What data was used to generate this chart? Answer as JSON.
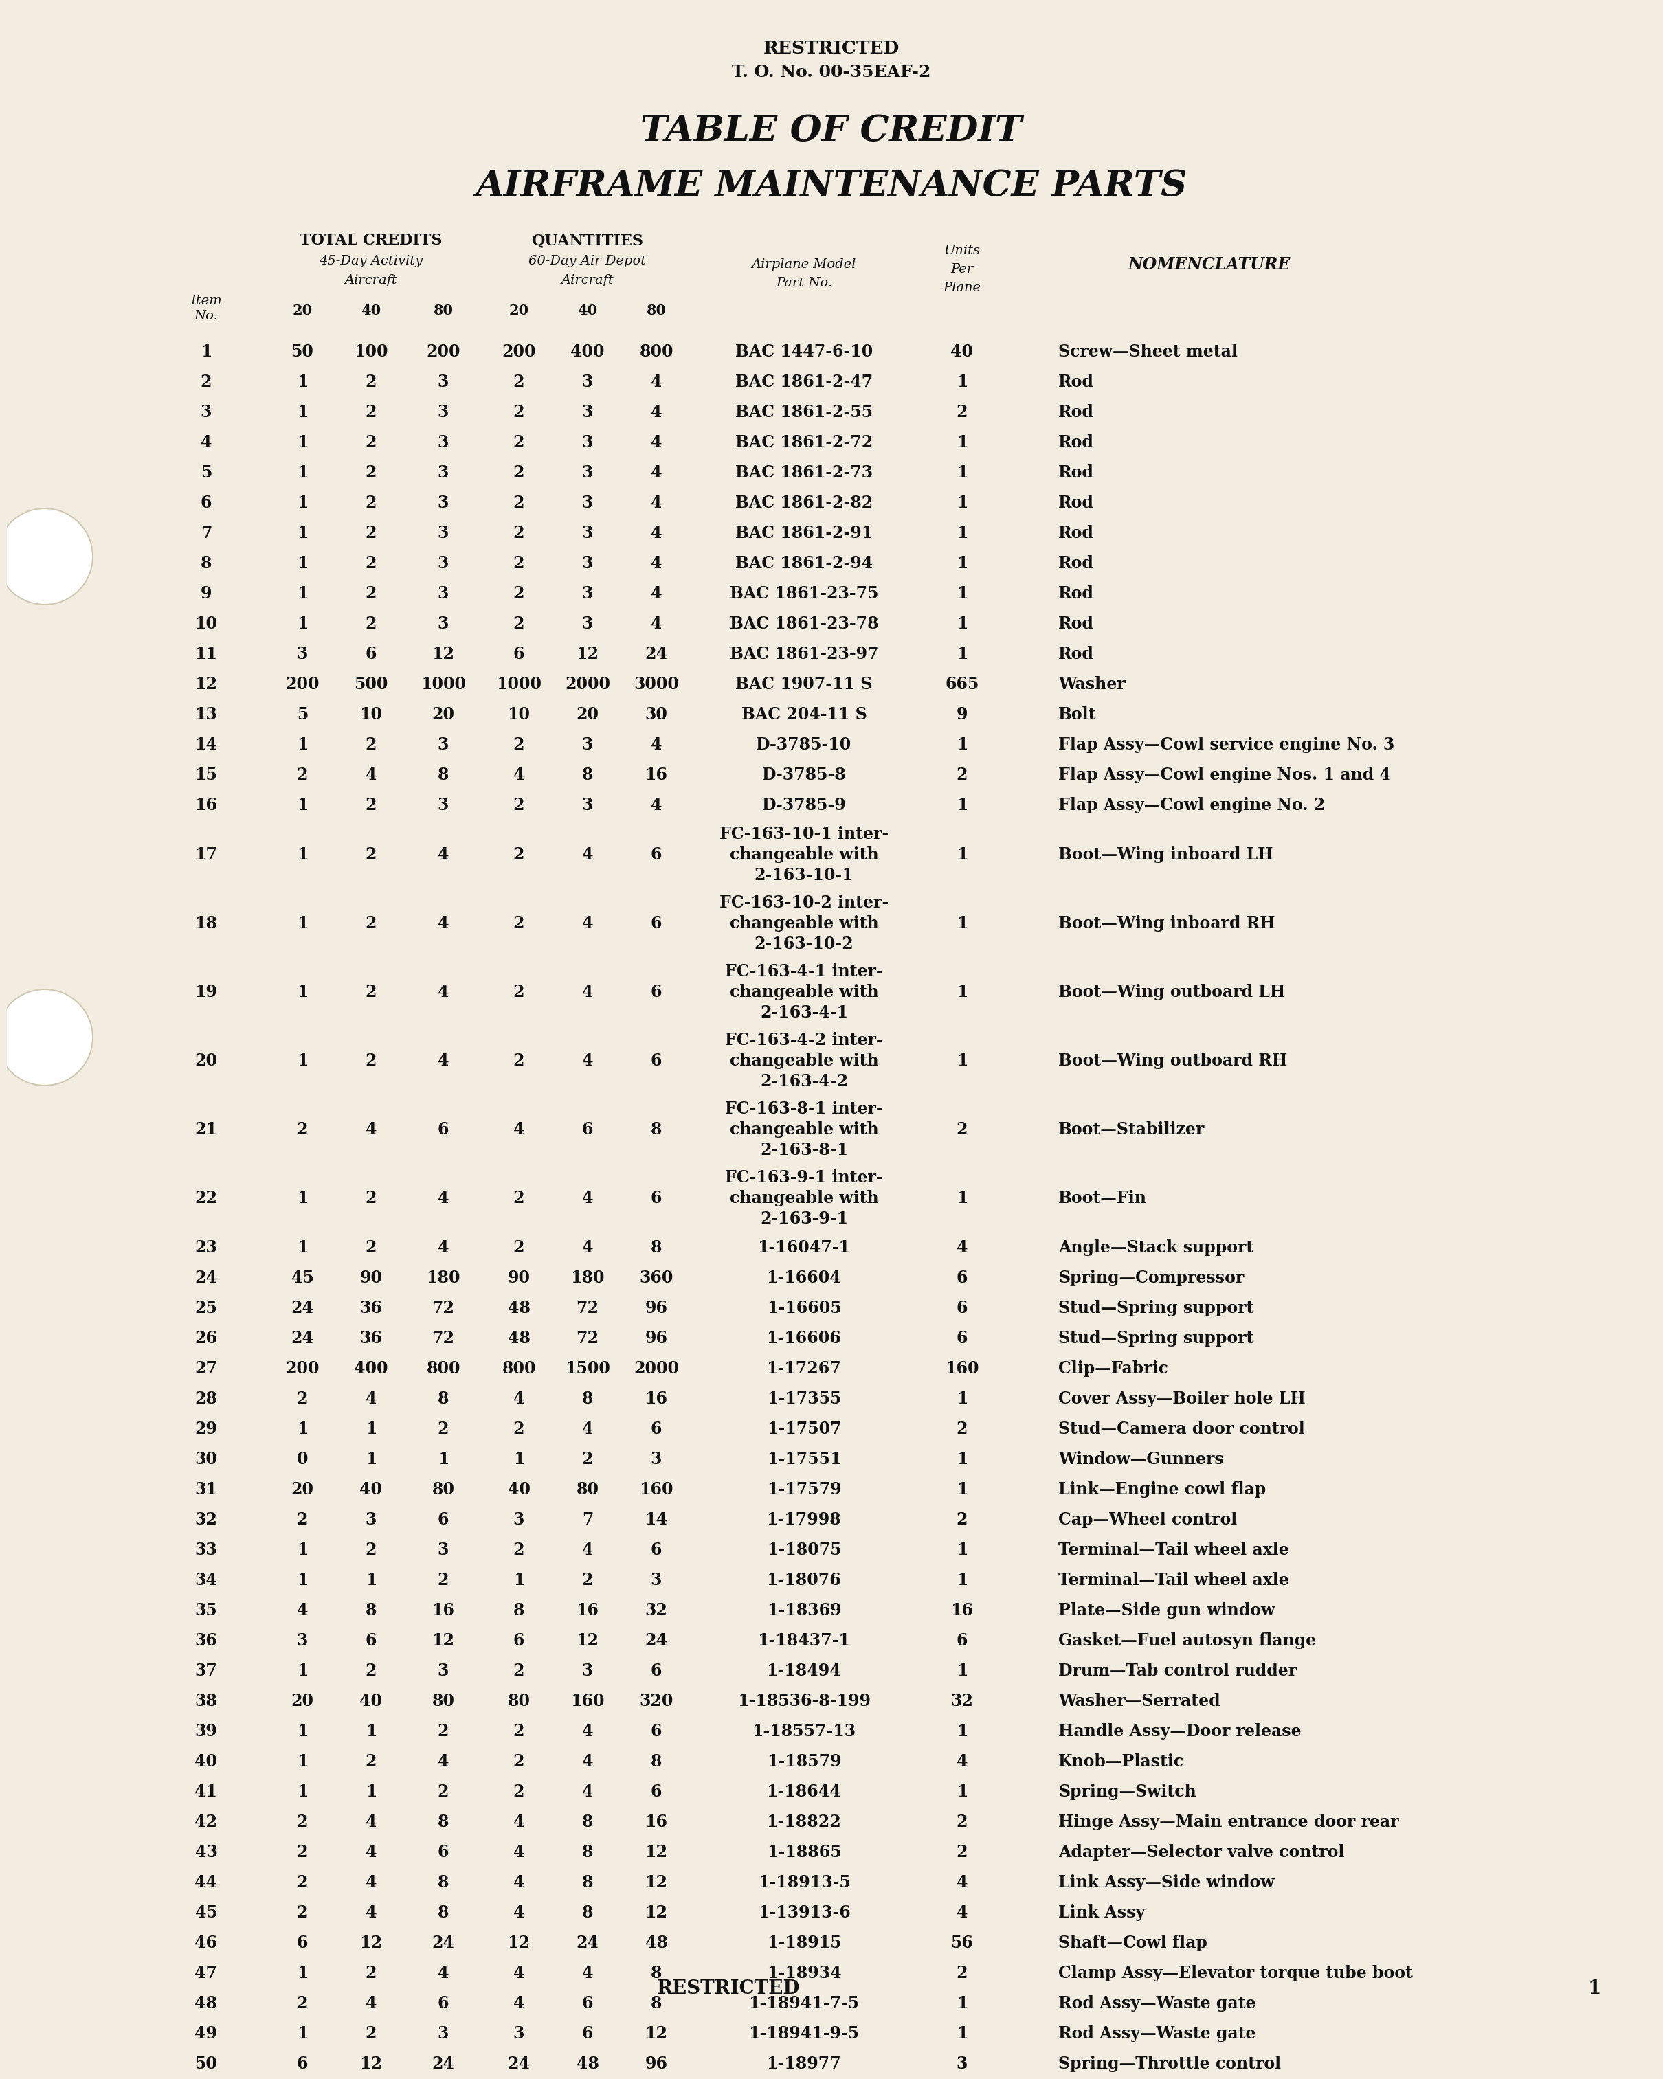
{
  "bg_color": "#f2ede0",
  "text_color": "#111111",
  "title1": "TABLE OF CREDIT",
  "title2": "AIRFRAME MAINTENANCE PARTS",
  "header_restricted_top": "RESTRICTED",
  "header_to_no": "T. O. No. 00-35EAF-2",
  "footer_restricted": "RESTRICTED",
  "footer_page": "1",
  "rows": [
    {
      "item": "1",
      "c20": "50",
      "c40": "100",
      "c80": "200",
      "q20": "200",
      "q40": "400",
      "q80": "800",
      "part": "BAC 1447-6-10",
      "units": "40",
      "nom": "Screw—Sheet metal"
    },
    {
      "item": "2",
      "c20": "1",
      "c40": "2",
      "c80": "3",
      "q20": "2",
      "q40": "3",
      "q80": "4",
      "part": "BAC 1861-2-47",
      "units": "1",
      "nom": "Rod"
    },
    {
      "item": "3",
      "c20": "1",
      "c40": "2",
      "c80": "3",
      "q20": "2",
      "q40": "3",
      "q80": "4",
      "part": "BAC 1861-2-55",
      "units": "2",
      "nom": "Rod"
    },
    {
      "item": "4",
      "c20": "1",
      "c40": "2",
      "c80": "3",
      "q20": "2",
      "q40": "3",
      "q80": "4",
      "part": "BAC 1861-2-72",
      "units": "1",
      "nom": "Rod"
    },
    {
      "item": "5",
      "c20": "1",
      "c40": "2",
      "c80": "3",
      "q20": "2",
      "q40": "3",
      "q80": "4",
      "part": "BAC 1861-2-73",
      "units": "1",
      "nom": "Rod"
    },
    {
      "item": "6",
      "c20": "1",
      "c40": "2",
      "c80": "3",
      "q20": "2",
      "q40": "3",
      "q80": "4",
      "part": "BAC 1861-2-82",
      "units": "1",
      "nom": "Rod"
    },
    {
      "item": "7",
      "c20": "1",
      "c40": "2",
      "c80": "3",
      "q20": "2",
      "q40": "3",
      "q80": "4",
      "part": "BAC 1861-2-91",
      "units": "1",
      "nom": "Rod"
    },
    {
      "item": "8",
      "c20": "1",
      "c40": "2",
      "c80": "3",
      "q20": "2",
      "q40": "3",
      "q80": "4",
      "part": "BAC 1861-2-94",
      "units": "1",
      "nom": "Rod"
    },
    {
      "item": "9",
      "c20": "1",
      "c40": "2",
      "c80": "3",
      "q20": "2",
      "q40": "3",
      "q80": "4",
      "part": "BAC 1861-23-75",
      "units": "1",
      "nom": "Rod"
    },
    {
      "item": "10",
      "c20": "1",
      "c40": "2",
      "c80": "3",
      "q20": "2",
      "q40": "3",
      "q80": "4",
      "part": "BAC 1861-23-78",
      "units": "1",
      "nom": "Rod"
    },
    {
      "item": "11",
      "c20": "3",
      "c40": "6",
      "c80": "12",
      "q20": "6",
      "q40": "12",
      "q80": "24",
      "part": "BAC 1861-23-97",
      "units": "1",
      "nom": "Rod"
    },
    {
      "item": "12",
      "c20": "200",
      "c40": "500",
      "c80": "1000",
      "q20": "1000",
      "q40": "2000",
      "q80": "3000",
      "part": "BAC 1907-11 S",
      "units": "665",
      "nom": "Washer"
    },
    {
      "item": "13",
      "c20": "5",
      "c40": "10",
      "c80": "20",
      "q20": "10",
      "q40": "20",
      "q80": "30",
      "part": "BAC 204-11 S",
      "units": "9",
      "nom": "Bolt"
    },
    {
      "item": "14",
      "c20": "1",
      "c40": "2",
      "c80": "3",
      "q20": "2",
      "q40": "3",
      "q80": "4",
      "part": "D-3785-10",
      "units": "1",
      "nom": "Flap Assy—Cowl service engine No. 3"
    },
    {
      "item": "15",
      "c20": "2",
      "c40": "4",
      "c80": "8",
      "q20": "4",
      "q40": "8",
      "q80": "16",
      "part": "D-3785-8",
      "units": "2",
      "nom": "Flap Assy—Cowl engine Nos. 1 and 4"
    },
    {
      "item": "16",
      "c20": "1",
      "c40": "2",
      "c80": "3",
      "q20": "2",
      "q40": "3",
      "q80": "4",
      "part": "D-3785-9",
      "units": "1",
      "nom": "Flap Assy—Cowl engine No. 2"
    },
    {
      "item": "17",
      "c20": "1",
      "c40": "2",
      "c80": "4",
      "q20": "2",
      "q40": "4",
      "q80": "6",
      "part": "FC-163-10-1 inter-\nchangeable with\n2-163-10-1",
      "units": "1",
      "nom": "Boot—Wing inboard LH"
    },
    {
      "item": "18",
      "c20": "1",
      "c40": "2",
      "c80": "4",
      "q20": "2",
      "q40": "4",
      "q80": "6",
      "part": "FC-163-10-2 inter-\nchangeable with\n2-163-10-2",
      "units": "1",
      "nom": "Boot—Wing inboard RH"
    },
    {
      "item": "19",
      "c20": "1",
      "c40": "2",
      "c80": "4",
      "q20": "2",
      "q40": "4",
      "q80": "6",
      "part": "FC-163-4-1 inter-\nchangeable with\n2-163-4-1",
      "units": "1",
      "nom": "Boot—Wing outboard LH"
    },
    {
      "item": "20",
      "c20": "1",
      "c40": "2",
      "c80": "4",
      "q20": "2",
      "q40": "4",
      "q80": "6",
      "part": "FC-163-4-2 inter-\nchangeable with\n2-163-4-2",
      "units": "1",
      "nom": "Boot—Wing outboard RH"
    },
    {
      "item": "21",
      "c20": "2",
      "c40": "4",
      "c80": "6",
      "q20": "4",
      "q40": "6",
      "q80": "8",
      "part": "FC-163-8-1 inter-\nchangeable with\n2-163-8-1",
      "units": "2",
      "nom": "Boot—Stabilizer"
    },
    {
      "item": "22",
      "c20": "1",
      "c40": "2",
      "c80": "4",
      "q20": "2",
      "q40": "4",
      "q80": "6",
      "part": "FC-163-9-1 inter-\nchangeable with\n2-163-9-1",
      "units": "1",
      "nom": "Boot—Fin"
    },
    {
      "item": "23",
      "c20": "1",
      "c40": "2",
      "c80": "4",
      "q20": "2",
      "q40": "4",
      "q80": "8",
      "part": "1-16047-1",
      "units": "4",
      "nom": "Angle—Stack support"
    },
    {
      "item": "24",
      "c20": "45",
      "c40": "90",
      "c80": "180",
      "q20": "90",
      "q40": "180",
      "q80": "360",
      "part": "1-16604",
      "units": "6",
      "nom": "Spring—Compressor"
    },
    {
      "item": "25",
      "c20": "24",
      "c40": "36",
      "c80": "72",
      "q20": "48",
      "q40": "72",
      "q80": "96",
      "part": "1-16605",
      "units": "6",
      "nom": "Stud—Spring support"
    },
    {
      "item": "26",
      "c20": "24",
      "c40": "36",
      "c80": "72",
      "q20": "48",
      "q40": "72",
      "q80": "96",
      "part": "1-16606",
      "units": "6",
      "nom": "Stud—Spring support"
    },
    {
      "item": "27",
      "c20": "200",
      "c40": "400",
      "c80": "800",
      "q20": "800",
      "q40": "1500",
      "q80": "2000",
      "part": "1-17267",
      "units": "160",
      "nom": "Clip—Fabric"
    },
    {
      "item": "28",
      "c20": "2",
      "c40": "4",
      "c80": "8",
      "q20": "4",
      "q40": "8",
      "q80": "16",
      "part": "1-17355",
      "units": "1",
      "nom": "Cover Assy—Boiler hole LH"
    },
    {
      "item": "29",
      "c20": "1",
      "c40": "1",
      "c80": "2",
      "q20": "2",
      "q40": "4",
      "q80": "6",
      "part": "1-17507",
      "units": "2",
      "nom": "Stud—Camera door control"
    },
    {
      "item": "30",
      "c20": "0",
      "c40": "1",
      "c80": "1",
      "q20": "1",
      "q40": "2",
      "q80": "3",
      "part": "1-17551",
      "units": "1",
      "nom": "Window—Gunners"
    },
    {
      "item": "31",
      "c20": "20",
      "c40": "40",
      "c80": "80",
      "q20": "40",
      "q40": "80",
      "q80": "160",
      "part": "1-17579",
      "units": "1",
      "nom": "Link—Engine cowl flap"
    },
    {
      "item": "32",
      "c20": "2",
      "c40": "3",
      "c80": "6",
      "q20": "3",
      "q40": "7",
      "q80": "14",
      "part": "1-17998",
      "units": "2",
      "nom": "Cap—Wheel control"
    },
    {
      "item": "33",
      "c20": "1",
      "c40": "2",
      "c80": "3",
      "q20": "2",
      "q40": "4",
      "q80": "6",
      "part": "1-18075",
      "units": "1",
      "nom": "Terminal—Tail wheel axle"
    },
    {
      "item": "34",
      "c20": "1",
      "c40": "1",
      "c80": "2",
      "q20": "1",
      "q40": "2",
      "q80": "3",
      "part": "1-18076",
      "units": "1",
      "nom": "Terminal—Tail wheel axle"
    },
    {
      "item": "35",
      "c20": "4",
      "c40": "8",
      "c80": "16",
      "q20": "8",
      "q40": "16",
      "q80": "32",
      "part": "1-18369",
      "units": "16",
      "nom": "Plate—Side gun window"
    },
    {
      "item": "36",
      "c20": "3",
      "c40": "6",
      "c80": "12",
      "q20": "6",
      "q40": "12",
      "q80": "24",
      "part": "1-18437-1",
      "units": "6",
      "nom": "Gasket—Fuel autosyn flange"
    },
    {
      "item": "37",
      "c20": "1",
      "c40": "2",
      "c80": "3",
      "q20": "2",
      "q40": "3",
      "q80": "6",
      "part": "1-18494",
      "units": "1",
      "nom": "Drum—Tab control rudder"
    },
    {
      "item": "38",
      "c20": "20",
      "c40": "40",
      "c80": "80",
      "q20": "80",
      "q40": "160",
      "q80": "320",
      "part": "1-18536-8-199",
      "units": "32",
      "nom": "Washer—Serrated"
    },
    {
      "item": "39",
      "c20": "1",
      "c40": "1",
      "c80": "2",
      "q20": "2",
      "q40": "4",
      "q80": "6",
      "part": "1-18557-13",
      "units": "1",
      "nom": "Handle Assy—Door release"
    },
    {
      "item": "40",
      "c20": "1",
      "c40": "2",
      "c80": "4",
      "q20": "2",
      "q40": "4",
      "q80": "8",
      "part": "1-18579",
      "units": "4",
      "nom": "Knob—Plastic"
    },
    {
      "item": "41",
      "c20": "1",
      "c40": "1",
      "c80": "2",
      "q20": "2",
      "q40": "4",
      "q80": "6",
      "part": "1-18644",
      "units": "1",
      "nom": "Spring—Switch"
    },
    {
      "item": "42",
      "c20": "2",
      "c40": "4",
      "c80": "8",
      "q20": "4",
      "q40": "8",
      "q80": "16",
      "part": "1-18822",
      "units": "2",
      "nom": "Hinge Assy—Main entrance door rear"
    },
    {
      "item": "43",
      "c20": "2",
      "c40": "4",
      "c80": "6",
      "q20": "4",
      "q40": "8",
      "q80": "12",
      "part": "1-18865",
      "units": "2",
      "nom": "Adapter—Selector valve control"
    },
    {
      "item": "44",
      "c20": "2",
      "c40": "4",
      "c80": "8",
      "q20": "4",
      "q40": "8",
      "q80": "12",
      "part": "1-18913-5",
      "units": "4",
      "nom": "Link Assy—Side window"
    },
    {
      "item": "45",
      "c20": "2",
      "c40": "4",
      "c80": "8",
      "q20": "4",
      "q40": "8",
      "q80": "12",
      "part": "1-13913-6",
      "units": "4",
      "nom": "Link Assy"
    },
    {
      "item": "46",
      "c20": "6",
      "c40": "12",
      "c80": "24",
      "q20": "12",
      "q40": "24",
      "q80": "48",
      "part": "1-18915",
      "units": "56",
      "nom": "Shaft—Cowl flap"
    },
    {
      "item": "47",
      "c20": "1",
      "c40": "2",
      "c80": "4",
      "q20": "4",
      "q40": "4",
      "q80": "8",
      "part": "1-18934",
      "units": "2",
      "nom": "Clamp Assy—Elevator torque tube boot"
    },
    {
      "item": "48",
      "c20": "2",
      "c40": "4",
      "c80": "6",
      "q20": "4",
      "q40": "6",
      "q80": "8",
      "part": "1-18941-7-5",
      "units": "1",
      "nom": "Rod Assy—Waste gate"
    },
    {
      "item": "49",
      "c20": "1",
      "c40": "2",
      "c80": "3",
      "q20": "3",
      "q40": "6",
      "q80": "12",
      "part": "1-18941-9-5",
      "units": "1",
      "nom": "Rod Assy—Waste gate"
    },
    {
      "item": "50",
      "c20": "6",
      "c40": "12",
      "c80": "24",
      "q20": "24",
      "q40": "48",
      "q80": "96",
      "part": "1-18977",
      "units": "3",
      "nom": "Spring—Throttle control"
    }
  ]
}
